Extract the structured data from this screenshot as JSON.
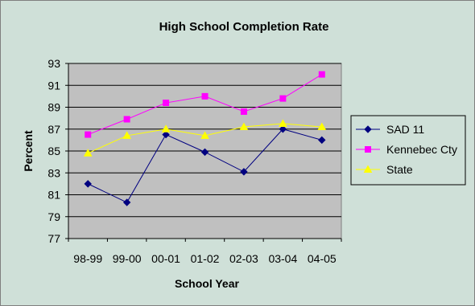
{
  "chart_data": {
    "type": "line",
    "title": "High School Completion Rate",
    "xlabel": "School Year",
    "ylabel": "Percent",
    "categories": [
      "98-99",
      "99-00",
      "00-01",
      "01-02",
      "02-03",
      "03-04",
      "04-05"
    ],
    "ylim": [
      77,
      93
    ],
    "yticks": [
      77,
      79,
      81,
      83,
      85,
      87,
      89,
      91,
      93
    ],
    "grid": true,
    "legend_position": "right",
    "series": [
      {
        "name": "SAD 11",
        "color": "#000080",
        "marker": "diamond",
        "values": [
          82.0,
          80.3,
          86.5,
          84.9,
          83.1,
          87.0,
          86.0
        ]
      },
      {
        "name": "Kennebec Cty",
        "color": "#ff00ff",
        "marker": "square",
        "values": [
          86.5,
          87.9,
          89.4,
          90.0,
          88.6,
          89.8,
          92.0
        ]
      },
      {
        "name": "State",
        "color": "#ffff00",
        "marker": "triangle",
        "values": [
          84.8,
          86.4,
          87.0,
          86.4,
          87.2,
          87.5,
          87.2
        ]
      }
    ]
  }
}
